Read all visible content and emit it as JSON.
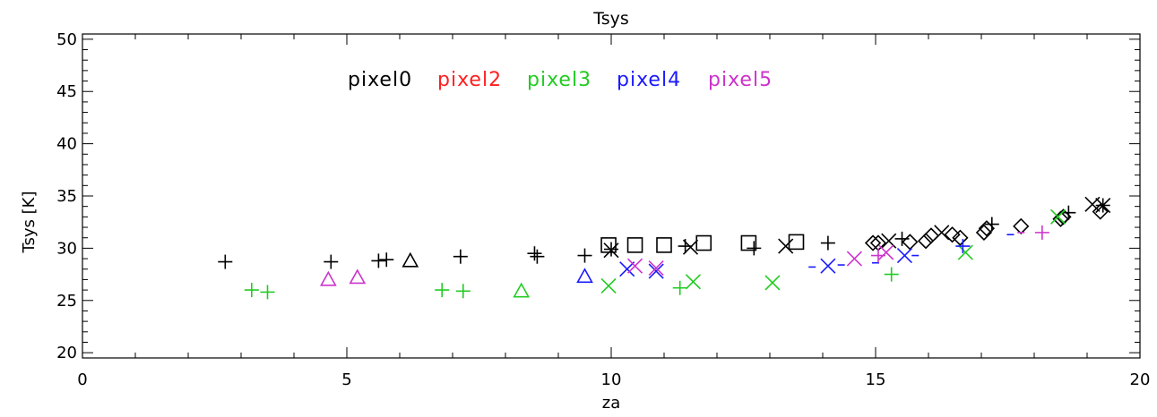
{
  "chart_data": {
    "type": "scatter",
    "title": "Tsys",
    "xlabel": "za",
    "ylabel": "Tsys [K]",
    "xlim": [
      0,
      20
    ],
    "ylim": [
      19.5,
      50.5
    ],
    "x_ticks": [
      "0",
      "5",
      "10",
      "15",
      "20"
    ],
    "x_tick_values": [
      0,
      5,
      10,
      15,
      20
    ],
    "y_ticks": [
      "20",
      "25",
      "30",
      "35",
      "40",
      "45",
      "50"
    ],
    "y_tick_values": [
      20,
      25,
      30,
      35,
      40,
      45,
      50
    ],
    "grid": false,
    "legend_position": "top-left",
    "legend": [
      {
        "label": "pixel0",
        "color": "#000000"
      },
      {
        "label": "pixel2",
        "color": "#ff2020"
      },
      {
        "label": "pixel3",
        "color": "#22cc22"
      },
      {
        "label": "pixel4",
        "color": "#1a1aff"
      },
      {
        "label": "pixel5",
        "color": "#cc33cc"
      }
    ],
    "series": [
      {
        "name": "pixel0",
        "color": "#000000",
        "points": [
          {
            "x": 2.7,
            "y": 28.7,
            "marker": "plus"
          },
          {
            "x": 4.7,
            "y": 28.7,
            "marker": "plus"
          },
          {
            "x": 5.6,
            "y": 28.8,
            "marker": "plus"
          },
          {
            "x": 5.75,
            "y": 28.9,
            "marker": "plus"
          },
          {
            "x": 6.2,
            "y": 28.8,
            "marker": "triangle"
          },
          {
            "x": 7.15,
            "y": 29.2,
            "marker": "plus"
          },
          {
            "x": 8.55,
            "y": 29.5,
            "marker": "plus"
          },
          {
            "x": 8.6,
            "y": 29.2,
            "marker": "plus"
          },
          {
            "x": 9.5,
            "y": 29.3,
            "marker": "plus"
          },
          {
            "x": 9.95,
            "y": 30.3,
            "marker": "square"
          },
          {
            "x": 10.0,
            "y": 29.8,
            "marker": "x"
          },
          {
            "x": 10.0,
            "y": 29.9,
            "marker": "plus"
          },
          {
            "x": 10.45,
            "y": 30.3,
            "marker": "square"
          },
          {
            "x": 11.0,
            "y": 30.3,
            "marker": "square"
          },
          {
            "x": 11.4,
            "y": 30.2,
            "marker": "plus"
          },
          {
            "x": 11.5,
            "y": 30.1,
            "marker": "x"
          },
          {
            "x": 11.75,
            "y": 30.5,
            "marker": "square"
          },
          {
            "x": 12.6,
            "y": 30.5,
            "marker": "square"
          },
          {
            "x": 12.7,
            "y": 30.0,
            "marker": "plus"
          },
          {
            "x": 13.3,
            "y": 30.2,
            "marker": "x"
          },
          {
            "x": 13.5,
            "y": 30.6,
            "marker": "square"
          },
          {
            "x": 14.1,
            "y": 30.5,
            "marker": "plus"
          },
          {
            "x": 14.95,
            "y": 30.5,
            "marker": "diamond"
          },
          {
            "x": 15.05,
            "y": 30.5,
            "marker": "diamond"
          },
          {
            "x": 15.25,
            "y": 30.7,
            "marker": "x"
          },
          {
            "x": 15.5,
            "y": 30.9,
            "marker": "plus"
          },
          {
            "x": 15.65,
            "y": 30.6,
            "marker": "diamond"
          },
          {
            "x": 15.95,
            "y": 30.7,
            "marker": "diamond"
          },
          {
            "x": 16.05,
            "y": 31.2,
            "marker": "diamond"
          },
          {
            "x": 16.25,
            "y": 31.5,
            "marker": "x"
          },
          {
            "x": 16.45,
            "y": 31.3,
            "marker": "diamond"
          },
          {
            "x": 16.6,
            "y": 31.0,
            "marker": "diamond"
          },
          {
            "x": 17.05,
            "y": 31.5,
            "marker": "diamond"
          },
          {
            "x": 17.1,
            "y": 31.9,
            "marker": "diamond"
          },
          {
            "x": 17.2,
            "y": 32.3,
            "marker": "plus"
          },
          {
            "x": 17.75,
            "y": 32.1,
            "marker": "diamond"
          },
          {
            "x": 18.5,
            "y": 32.8,
            "marker": "diamond"
          },
          {
            "x": 18.55,
            "y": 33.0,
            "marker": "diamond"
          },
          {
            "x": 18.65,
            "y": 33.4,
            "marker": "plus"
          },
          {
            "x": 19.1,
            "y": 34.2,
            "marker": "x"
          },
          {
            "x": 19.25,
            "y": 33.5,
            "marker": "diamond"
          },
          {
            "x": 19.3,
            "y": 34.1,
            "marker": "asterisk"
          }
        ]
      },
      {
        "name": "pixel3",
        "color": "#22cc22",
        "points": [
          {
            "x": 3.2,
            "y": 26.0,
            "marker": "plus"
          },
          {
            "x": 3.5,
            "y": 25.8,
            "marker": "plus"
          },
          {
            "x": 6.8,
            "y": 26.0,
            "marker": "plus"
          },
          {
            "x": 7.2,
            "y": 25.9,
            "marker": "plus"
          },
          {
            "x": 8.3,
            "y": 25.9,
            "marker": "triangle"
          },
          {
            "x": 9.95,
            "y": 26.4,
            "marker": "x"
          },
          {
            "x": 11.3,
            "y": 26.2,
            "marker": "plus"
          },
          {
            "x": 11.55,
            "y": 26.8,
            "marker": "x"
          },
          {
            "x": 13.05,
            "y": 26.7,
            "marker": "x"
          },
          {
            "x": 15.3,
            "y": 27.5,
            "marker": "plus"
          },
          {
            "x": 16.7,
            "y": 29.6,
            "marker": "x"
          },
          {
            "x": 18.45,
            "y": 33.0,
            "marker": "x"
          }
        ]
      },
      {
        "name": "pixel4",
        "color": "#1a1aff",
        "points": [
          {
            "x": 9.5,
            "y": 27.3,
            "marker": "triangle"
          },
          {
            "x": 10.3,
            "y": 28.0,
            "marker": "x"
          },
          {
            "x": 10.85,
            "y": 27.8,
            "marker": "x"
          },
          {
            "x": 13.8,
            "y": 28.2,
            "marker": "dash"
          },
          {
            "x": 14.1,
            "y": 28.3,
            "marker": "x"
          },
          {
            "x": 14.35,
            "y": 28.4,
            "marker": "dash"
          },
          {
            "x": 15.0,
            "y": 28.6,
            "marker": "dash"
          },
          {
            "x": 15.55,
            "y": 29.3,
            "marker": "x"
          },
          {
            "x": 15.75,
            "y": 29.3,
            "marker": "dash"
          },
          {
            "x": 16.65,
            "y": 30.2,
            "marker": "plus"
          },
          {
            "x": 17.55,
            "y": 31.3,
            "marker": "dash"
          }
        ]
      },
      {
        "name": "pixel5",
        "color": "#cc33cc",
        "points": [
          {
            "x": 4.65,
            "y": 27.0,
            "marker": "triangle"
          },
          {
            "x": 5.2,
            "y": 27.2,
            "marker": "triangle"
          },
          {
            "x": 10.45,
            "y": 28.3,
            "marker": "x"
          },
          {
            "x": 10.85,
            "y": 28.1,
            "marker": "x"
          },
          {
            "x": 14.6,
            "y": 29.0,
            "marker": "x"
          },
          {
            "x": 15.05,
            "y": 29.3,
            "marker": "plus"
          },
          {
            "x": 15.2,
            "y": 29.6,
            "marker": "x"
          },
          {
            "x": 17.75,
            "y": 31.5,
            "marker": "dash"
          },
          {
            "x": 18.15,
            "y": 31.5,
            "marker": "plus"
          }
        ]
      }
    ]
  }
}
